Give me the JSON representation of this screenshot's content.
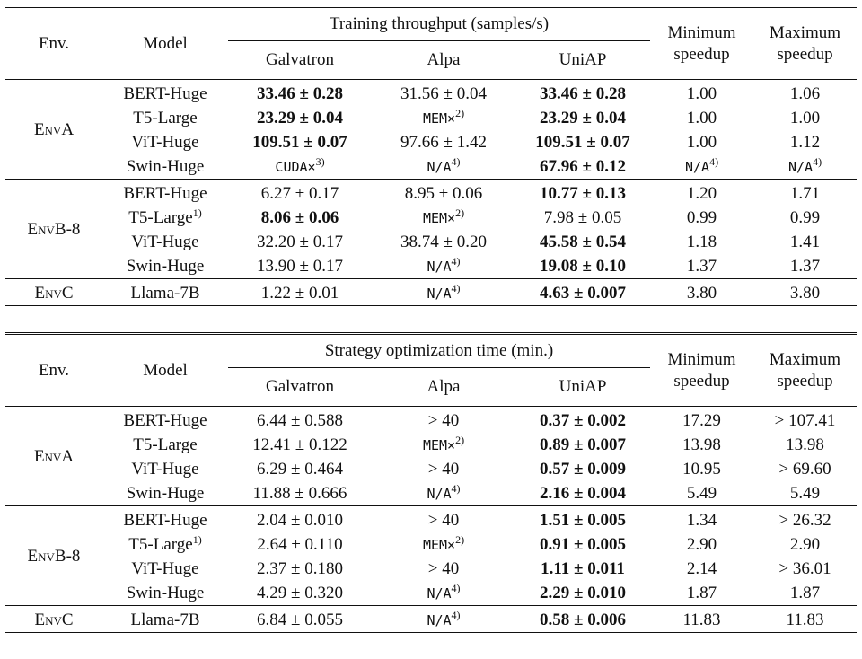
{
  "headers": {
    "env": "Env.",
    "model": "Model",
    "throughput_group": "Training throughput (samples/s)",
    "time_group": "Strategy optimization time (min.)",
    "galvatron": "Galvatron",
    "alpa": "Alpa",
    "uniap": "UniAP",
    "min_speedup_1": "Minimum",
    "min_speedup_2": "speedup",
    "max_speedup_1": "Maximum",
    "max_speedup_2": "speedup"
  },
  "throughput": {
    "groups": [
      {
        "env": "EnvA",
        "rows": [
          {
            "model": "BERT-Huge",
            "model_sup": "",
            "galvatron": "33.46 ± 0.28",
            "galvatron_bold": true,
            "alpa": "31.56 ± 0.04",
            "alpa_mono": false,
            "alpa_sup": "",
            "uniap": "33.46 ± 0.28",
            "min": "1.00",
            "min_mono": false,
            "min_sup": "",
            "max": "1.06",
            "max_mono": false,
            "max_sup": ""
          },
          {
            "model": "T5-Large",
            "model_sup": "",
            "galvatron": "23.29 ± 0.04",
            "galvatron_bold": true,
            "alpa": "MEM×",
            "alpa_mono": true,
            "alpa_sup": "2)",
            "uniap": "23.29 ± 0.04",
            "min": "1.00",
            "min_mono": false,
            "min_sup": "",
            "max": "1.00",
            "max_mono": false,
            "max_sup": ""
          },
          {
            "model": "ViT-Huge",
            "model_sup": "",
            "galvatron": "109.51 ± 0.07",
            "galvatron_bold": true,
            "alpa": "97.66 ± 1.42",
            "alpa_mono": false,
            "alpa_sup": "",
            "uniap": "109.51 ± 0.07",
            "min": "1.00",
            "min_mono": false,
            "min_sup": "",
            "max": "1.12",
            "max_mono": false,
            "max_sup": ""
          },
          {
            "model": "Swin-Huge",
            "model_sup": "",
            "galvatron": "CUDA×",
            "galvatron_mono": true,
            "galvatron_sup": "3)",
            "galvatron_bold": false,
            "alpa": "N/A",
            "alpa_mono": true,
            "alpa_sup": "4)",
            "uniap": "67.96 ± 0.12",
            "min": "N/A",
            "min_mono": true,
            "min_sup": "4)",
            "max": "N/A",
            "max_mono": true,
            "max_sup": "4)"
          }
        ]
      },
      {
        "env": "EnvB-8",
        "rows": [
          {
            "model": "BERT-Huge",
            "model_sup": "",
            "galvatron": "6.27 ± 0.17",
            "galvatron_bold": false,
            "alpa": "8.95 ± 0.06",
            "alpa_mono": false,
            "alpa_sup": "",
            "uniap": "10.77 ± 0.13",
            "uniap_bold": true,
            "min": "1.20",
            "min_mono": false,
            "min_sup": "",
            "max": "1.71",
            "max_mono": false,
            "max_sup": ""
          },
          {
            "model": "T5-Large",
            "model_sup": "1)",
            "galvatron": "8.06 ± 0.06",
            "galvatron_bold": true,
            "alpa": "MEM×",
            "alpa_mono": true,
            "alpa_sup": "2)",
            "uniap": "7.98 ± 0.05",
            "uniap_bold": false,
            "min": "0.99",
            "min_mono": false,
            "min_sup": "",
            "max": "0.99",
            "max_mono": false,
            "max_sup": ""
          },
          {
            "model": "ViT-Huge",
            "model_sup": "",
            "galvatron": "32.20 ± 0.17",
            "galvatron_bold": false,
            "alpa": "38.74 ± 0.20",
            "alpa_mono": false,
            "alpa_sup": "",
            "uniap": "45.58 ± 0.54",
            "uniap_bold": true,
            "min": "1.18",
            "min_mono": false,
            "min_sup": "",
            "max": "1.41",
            "max_mono": false,
            "max_sup": ""
          },
          {
            "model": "Swin-Huge",
            "model_sup": "",
            "galvatron": "13.90 ± 0.17",
            "galvatron_bold": false,
            "alpa": "N/A",
            "alpa_mono": true,
            "alpa_sup": "4)",
            "uniap": "19.08 ± 0.10",
            "uniap_bold": true,
            "min": "1.37",
            "min_mono": false,
            "min_sup": "",
            "max": "1.37",
            "max_mono": false,
            "max_sup": ""
          }
        ]
      },
      {
        "env": "EnvC",
        "rows": [
          {
            "model": "Llama-7B",
            "model_sup": "",
            "galvatron": "1.22 ± 0.01",
            "galvatron_bold": false,
            "alpa": "N/A",
            "alpa_mono": true,
            "alpa_sup": "4)",
            "uniap": "4.63 ± 0.007",
            "uniap_bold": true,
            "min": "3.80",
            "min_mono": false,
            "min_sup": "",
            "max": "3.80",
            "max_mono": false,
            "max_sup": ""
          }
        ]
      }
    ]
  },
  "optimization_time": {
    "groups": [
      {
        "env": "EnvA",
        "rows": [
          {
            "model": "BERT-Huge",
            "model_sup": "",
            "galvatron": "6.44 ± 0.588",
            "alpa": "> 40",
            "alpa_mono": false,
            "alpa_sup": "",
            "uniap": "0.37 ± 0.002",
            "min": "17.29",
            "max": "> 107.41"
          },
          {
            "model": "T5-Large",
            "model_sup": "",
            "galvatron": "12.41 ± 0.122",
            "alpa": "MEM×",
            "alpa_mono": true,
            "alpa_sup": "2)",
            "uniap": "0.89 ± 0.007",
            "min": "13.98",
            "max": "13.98"
          },
          {
            "model": "ViT-Huge",
            "model_sup": "",
            "galvatron": "6.29 ± 0.464",
            "alpa": "> 40",
            "alpa_mono": false,
            "alpa_sup": "",
            "uniap": "0.57 ± 0.009",
            "min": "10.95",
            "max": "> 69.60"
          },
          {
            "model": "Swin-Huge",
            "model_sup": "",
            "galvatron": "11.88 ± 0.666",
            "alpa": "N/A",
            "alpa_mono": true,
            "alpa_sup": "4)",
            "uniap": "2.16 ± 0.004",
            "min": "5.49",
            "max": "5.49"
          }
        ]
      },
      {
        "env": "EnvB-8",
        "rows": [
          {
            "model": "BERT-Huge",
            "model_sup": "",
            "galvatron": "2.04 ± 0.010",
            "alpa": "> 40",
            "alpa_mono": false,
            "alpa_sup": "",
            "uniap": "1.51 ± 0.005",
            "min": "1.34",
            "max": "> 26.32"
          },
          {
            "model": "T5-Large",
            "model_sup": "1)",
            "galvatron": "2.64 ± 0.110",
            "alpa": "MEM×",
            "alpa_mono": true,
            "alpa_sup": "2)",
            "uniap": "0.91 ± 0.005",
            "min": "2.90",
            "max": "2.90"
          },
          {
            "model": "ViT-Huge",
            "model_sup": "",
            "galvatron": "2.37 ± 0.180",
            "alpa": "> 40",
            "alpa_mono": false,
            "alpa_sup": "",
            "uniap": "1.11 ± 0.011",
            "min": "2.14",
            "max": "> 36.01"
          },
          {
            "model": "Swin-Huge",
            "model_sup": "",
            "galvatron": "4.29 ± 0.320",
            "alpa": "N/A",
            "alpa_mono": true,
            "alpa_sup": "4)",
            "uniap": "2.29 ± 0.010",
            "min": "1.87",
            "max": "1.87"
          }
        ]
      },
      {
        "env": "EnvC",
        "rows": [
          {
            "model": "Llama-7B",
            "model_sup": "",
            "galvatron": "6.84 ± 0.055",
            "alpa": "N/A",
            "alpa_mono": true,
            "alpa_sup": "4)",
            "uniap": "0.58 ± 0.006",
            "min": "11.83",
            "max": "11.83"
          }
        ]
      }
    ]
  }
}
